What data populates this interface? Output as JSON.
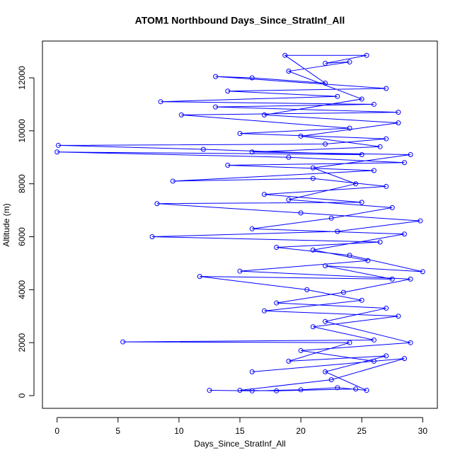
{
  "chart_data": {
    "type": "line",
    "title": "ATOM1 Northbound Days_Since_StratInf_All",
    "x_label": "Days_Since_StratInf_All",
    "y_label": "Altitude (m)",
    "markers": true,
    "x": [
      12.5,
      16,
      20,
      23,
      25.4,
      22,
      27,
      19,
      24,
      5.4,
      26,
      21,
      28,
      17,
      25,
      20.5,
      11.7,
      27.5,
      22,
      30,
      24,
      18,
      26.5,
      7.8,
      23,
      29.8,
      20,
      8.2,
      25,
      17,
      27,
      21,
      9.5,
      26,
      14,
      28.5,
      19,
      0,
      25,
      12,
      0.1,
      22,
      27,
      15,
      24,
      10.2,
      28,
      13,
      26,
      8.5,
      23,
      14,
      27,
      13,
      16,
      22,
      18.7,
      25.4,
      22,
      24,
      19,
      25,
      17,
      28,
      20,
      26.5,
      16,
      29,
      21,
      24.5,
      19,
      27.5,
      22.5,
      16,
      28.5,
      21,
      25.5,
      15,
      29,
      23.5,
      18,
      27,
      22,
      29,
      20,
      26,
      16,
      28.5,
      22.5,
      15,
      18,
      24.5
    ],
    "series": [
      {
        "color": "#0000ff",
        "values": [
          200,
          180,
          220,
          300,
          200,
          900,
          1500,
          1300,
          2000,
          2030,
          2100,
          2600,
          3000,
          3200,
          3600,
          4000,
          4500,
          4400,
          4900,
          4680,
          5300,
          5600,
          5800,
          6000,
          6200,
          6600,
          6900,
          7250,
          7300,
          7600,
          7900,
          8200,
          8100,
          8500,
          8700,
          8800,
          9000,
          9200,
          9100,
          9300,
          9450,
          9500,
          9700,
          9900,
          10100,
          10600,
          10700,
          10900,
          11000,
          11100,
          11300,
          11500,
          11600,
          12050,
          12000,
          11800,
          12850,
          12850,
          12550,
          12600,
          12250,
          11200,
          10600,
          10300,
          9800,
          9400,
          9200,
          9100,
          8600,
          8000,
          7400,
          7100,
          6700,
          6300,
          6100,
          5500,
          5100,
          4700,
          4400,
          3900,
          3500,
          3300,
          2800,
          2000,
          1700,
          1300,
          900,
          1400,
          600,
          200,
          180,
          250
        ]
      }
    ],
    "xlim": [
      -1.2,
      31.2
    ],
    "ylim": [
      -480,
      13390
    ],
    "xticks": [
      0,
      5,
      10,
      15,
      20,
      25,
      30
    ],
    "yticks": [
      0,
      2000,
      4000,
      6000,
      8000,
      10000,
      12000
    ]
  }
}
